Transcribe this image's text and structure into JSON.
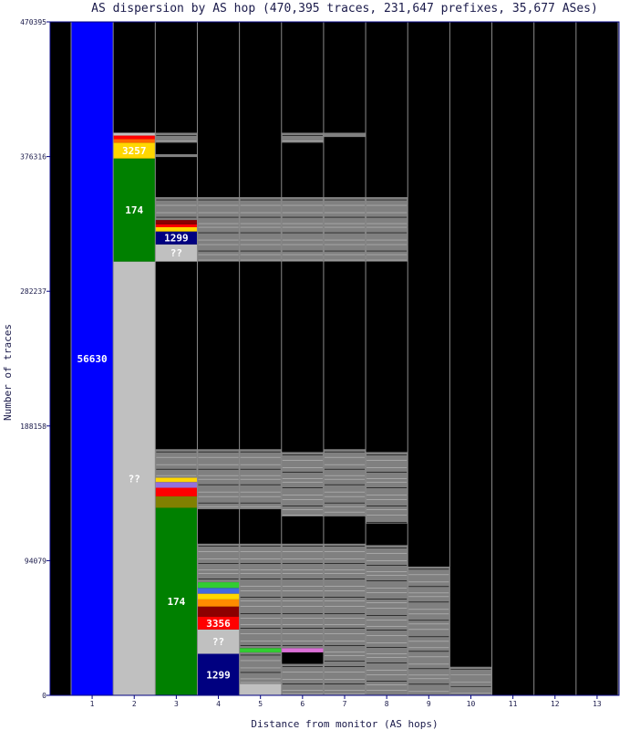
{
  "chart_data": {
    "type": "bar",
    "title": "AS dispersion by AS hop (470,395 traces, 231,647 prefixes, 35,677 ASes)",
    "xlabel": "Distance from monitor (AS hops)",
    "ylabel": "Number of traces",
    "ylim": [
      0,
      470395
    ],
    "yticks": [
      "0",
      "94079",
      "188158",
      "282237",
      "376316",
      "470395"
    ],
    "categories": [
      "1",
      "2",
      "3",
      "4",
      "5",
      "6",
      "7",
      "8",
      "9",
      "10",
      "11",
      "12",
      "13"
    ],
    "columns": [
      {
        "hop": "1",
        "segments": [
          {
            "from": 0,
            "to": 470395,
            "color": "#0000ff",
            "label": "56630"
          }
        ]
      },
      {
        "hop": "2",
        "segments": [
          {
            "from": 0,
            "to": 303000,
            "color": "#c0c0c0",
            "label": "??"
          },
          {
            "from": 303000,
            "to": 375000,
            "color": "#008000",
            "label": "174"
          },
          {
            "from": 375000,
            "to": 386000,
            "color": "#ffd700",
            "label": "3257"
          },
          {
            "from": 386000,
            "to": 388500,
            "color": "#ff6600",
            "label": ""
          },
          {
            "from": 388500,
            "to": 391000,
            "color": "#ff0000",
            "label": ""
          },
          {
            "from": 391000,
            "to": 393000,
            "color": "#c0c0c0",
            "label": ""
          },
          {
            "from": 393000,
            "to": 470395,
            "color": "#000000",
            "label": ""
          }
        ]
      },
      {
        "hop": "3",
        "segments": [
          {
            "from": 0,
            "to": 131000,
            "color": "#008000",
            "label": "174"
          },
          {
            "from": 131000,
            "to": 139000,
            "color": "#808000",
            "label": ""
          },
          {
            "from": 139000,
            "to": 145000,
            "color": "#ff0000",
            "label": ""
          },
          {
            "from": 145000,
            "to": 149000,
            "color": "#9370db",
            "label": ""
          },
          {
            "from": 149000,
            "to": 152000,
            "color": "#ffd700",
            "label": ""
          },
          {
            "from": 152000,
            "to": 172000,
            "color": "#808080",
            "label": ""
          },
          {
            "from": 172000,
            "to": 303000,
            "color": "#000000",
            "label": ""
          },
          {
            "from": 303000,
            "to": 315000,
            "color": "#c0c0c0",
            "label": "??"
          },
          {
            "from": 315000,
            "to": 324000,
            "color": "#000080",
            "label": "1299"
          },
          {
            "from": 324000,
            "to": 327000,
            "color": "#ffd700",
            "label": ""
          },
          {
            "from": 327000,
            "to": 329000,
            "color": "#ff0000",
            "label": ""
          },
          {
            "from": 329000,
            "to": 332000,
            "color": "#8b0000",
            "label": ""
          },
          {
            "from": 332000,
            "to": 348000,
            "color": "#808080",
            "label": ""
          },
          {
            "from": 348000,
            "to": 376000,
            "color": "#000000",
            "label": ""
          },
          {
            "from": 376000,
            "to": 378000,
            "color": "#808080",
            "label": ""
          },
          {
            "from": 378000,
            "to": 386000,
            "color": "#000000",
            "label": ""
          },
          {
            "from": 386000,
            "to": 393000,
            "color": "#808080",
            "label": ""
          },
          {
            "from": 393000,
            "to": 470395,
            "color": "#000000",
            "label": ""
          }
        ]
      },
      {
        "hop": "4",
        "segments": [
          {
            "from": 0,
            "to": 29000,
            "color": "#000080",
            "label": "1299"
          },
          {
            "from": 29000,
            "to": 46000,
            "color": "#c0c0c0",
            "label": "??"
          },
          {
            "from": 46000,
            "to": 55000,
            "color": "#ff0000",
            "label": "3356"
          },
          {
            "from": 55000,
            "to": 62000,
            "color": "#8b0000",
            "label": ""
          },
          {
            "from": 62000,
            "to": 67000,
            "color": "#ff8c00",
            "label": ""
          },
          {
            "from": 67000,
            "to": 71000,
            "color": "#ffd700",
            "label": ""
          },
          {
            "from": 71000,
            "to": 75000,
            "color": "#4169e1",
            "label": ""
          },
          {
            "from": 75000,
            "to": 79000,
            "color": "#32cd32",
            "label": ""
          },
          {
            "from": 79000,
            "to": 106000,
            "color": "#808080",
            "label": ""
          },
          {
            "from": 106000,
            "to": 130000,
            "color": "#000000",
            "label": ""
          },
          {
            "from": 130000,
            "to": 172000,
            "color": "#808080",
            "label": ""
          },
          {
            "from": 172000,
            "to": 303000,
            "color": "#000000",
            "label": ""
          },
          {
            "from": 303000,
            "to": 348000,
            "color": "#808080",
            "label": ""
          },
          {
            "from": 348000,
            "to": 470395,
            "color": "#000000",
            "label": ""
          }
        ]
      },
      {
        "hop": "5",
        "segments": [
          {
            "from": 0,
            "to": 8000,
            "color": "#c0c0c0",
            "label": ""
          },
          {
            "from": 8000,
            "to": 30000,
            "color": "#808080",
            "label": ""
          },
          {
            "from": 30000,
            "to": 33000,
            "color": "#32cd32",
            "label": ""
          },
          {
            "from": 33000,
            "to": 106000,
            "color": "#808080",
            "label": ""
          },
          {
            "from": 106000,
            "to": 130000,
            "color": "#000000",
            "label": ""
          },
          {
            "from": 130000,
            "to": 172000,
            "color": "#808080",
            "label": ""
          },
          {
            "from": 172000,
            "to": 303000,
            "color": "#000000",
            "label": ""
          },
          {
            "from": 303000,
            "to": 348000,
            "color": "#808080",
            "label": ""
          },
          {
            "from": 348000,
            "to": 470395,
            "color": "#000000",
            "label": ""
          }
        ]
      },
      {
        "hop": "6",
        "segments": [
          {
            "from": 0,
            "to": 22000,
            "color": "#808080",
            "label": ""
          },
          {
            "from": 22000,
            "to": 30000,
            "color": "#000000",
            "label": ""
          },
          {
            "from": 30000,
            "to": 33000,
            "color": "#da70d6",
            "label": ""
          },
          {
            "from": 33000,
            "to": 106000,
            "color": "#808080",
            "label": ""
          },
          {
            "from": 106000,
            "to": 125000,
            "color": "#000000",
            "label": ""
          },
          {
            "from": 125000,
            "to": 170000,
            "color": "#808080",
            "label": ""
          },
          {
            "from": 170000,
            "to": 303000,
            "color": "#000000",
            "label": ""
          },
          {
            "from": 303000,
            "to": 348000,
            "color": "#808080",
            "label": ""
          },
          {
            "from": 348000,
            "to": 386000,
            "color": "#000000",
            "label": ""
          },
          {
            "from": 386000,
            "to": 393000,
            "color": "#808080",
            "label": ""
          },
          {
            "from": 393000,
            "to": 470395,
            "color": "#000000",
            "label": ""
          }
        ]
      },
      {
        "hop": "7",
        "segments": [
          {
            "from": 0,
            "to": 22000,
            "color": "#808080",
            "label": ""
          },
          {
            "from": 22000,
            "to": 106000,
            "color": "#808080",
            "label": ""
          },
          {
            "from": 106000,
            "to": 125000,
            "color": "#000000",
            "label": ""
          },
          {
            "from": 125000,
            "to": 172000,
            "color": "#808080",
            "label": ""
          },
          {
            "from": 172000,
            "to": 303000,
            "color": "#000000",
            "label": ""
          },
          {
            "from": 303000,
            "to": 348000,
            "color": "#808080",
            "label": ""
          },
          {
            "from": 348000,
            "to": 390000,
            "color": "#000000",
            "label": ""
          },
          {
            "from": 390000,
            "to": 393000,
            "color": "#808080",
            "label": ""
          },
          {
            "from": 393000,
            "to": 470395,
            "color": "#000000",
            "label": ""
          }
        ]
      },
      {
        "hop": "8",
        "segments": [
          {
            "from": 0,
            "to": 105000,
            "color": "#808080",
            "label": ""
          },
          {
            "from": 105000,
            "to": 120000,
            "color": "#000000",
            "label": ""
          },
          {
            "from": 120000,
            "to": 170000,
            "color": "#808080",
            "label": ""
          },
          {
            "from": 170000,
            "to": 303000,
            "color": "#000000",
            "label": ""
          },
          {
            "from": 303000,
            "to": 348000,
            "color": "#808080",
            "label": ""
          },
          {
            "from": 348000,
            "to": 470395,
            "color": "#000000",
            "label": ""
          }
        ]
      },
      {
        "hop": "9",
        "segments": [
          {
            "from": 0,
            "to": 90000,
            "color": "#808080",
            "label": ""
          },
          {
            "from": 90000,
            "to": 470395,
            "color": "#000000",
            "label": ""
          }
        ]
      },
      {
        "hop": "10",
        "segments": [
          {
            "from": 0,
            "to": 20000,
            "color": "#808080",
            "label": ""
          },
          {
            "from": 20000,
            "to": 470395,
            "color": "#000000",
            "label": ""
          }
        ]
      },
      {
        "hop": "11",
        "segments": [
          {
            "from": 0,
            "to": 470395,
            "color": "#000000",
            "label": ""
          }
        ]
      },
      {
        "hop": "12",
        "segments": [
          {
            "from": 0,
            "to": 470395,
            "color": "#000000",
            "label": ""
          }
        ]
      },
      {
        "hop": "13",
        "segments": [
          {
            "from": 0,
            "to": 470395,
            "color": "#000000",
            "label": ""
          }
        ]
      }
    ]
  }
}
